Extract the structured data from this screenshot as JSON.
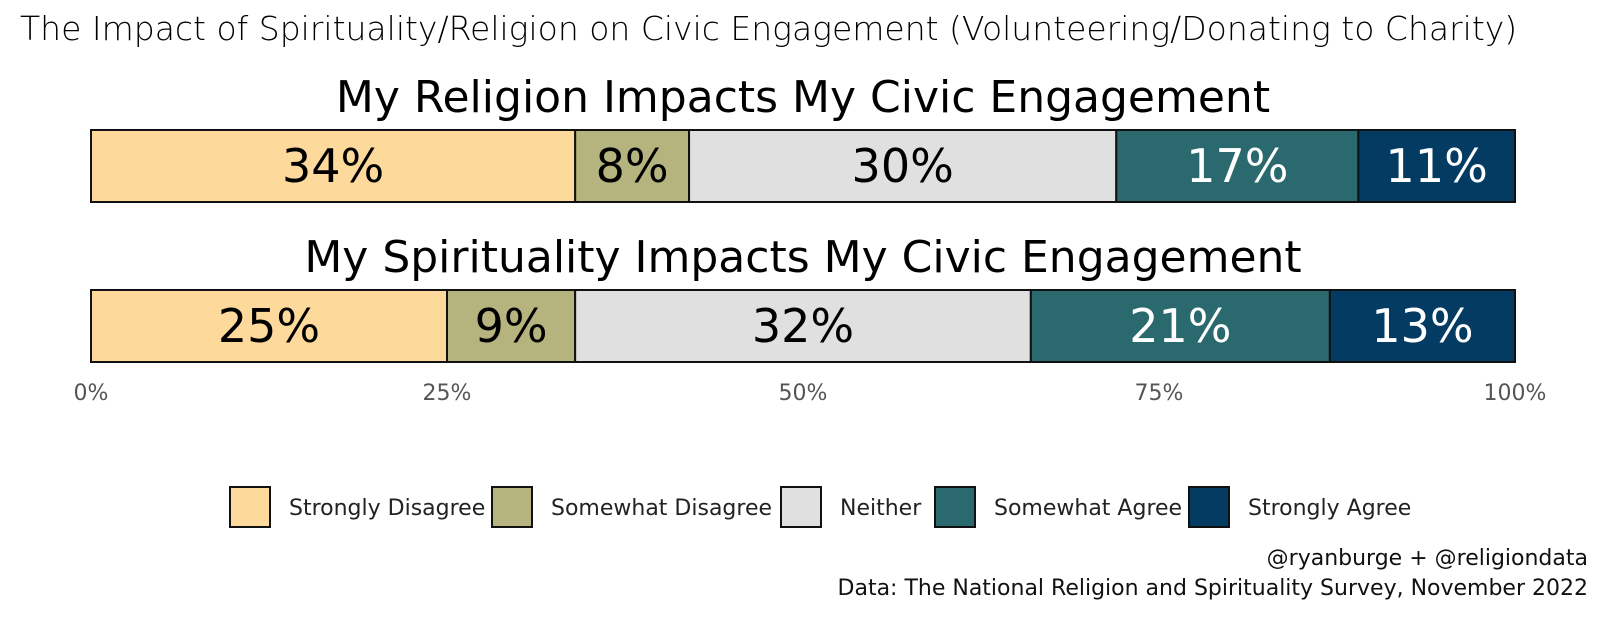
{
  "title": "The Impact of Spirituality/Religion on Civic Engagement (Volunteering/Donating to Charity)",
  "caption": {
    "line1": "@ryanburge + @religiondata",
    "line2": "Data: The National Religion and Spirituality Survey, November 2022"
  },
  "colors": {
    "Strongly Disagree": "#FDD99B",
    "Somewhat Disagree": "#B5B37E",
    "Neither": "#E0E0E0",
    "Somewhat Agree": "#2A6A6E",
    "Strongly Agree": "#043B62"
  },
  "label_colors": {
    "Strongly Disagree": "#000000",
    "Somewhat Disagree": "#000000",
    "Neither": "#000000",
    "Somewhat Agree": "#ffffff",
    "Strongly Agree": "#ffffff"
  },
  "chart_data": {
    "type": "bar",
    "orientation": "horizontal-stacked-100",
    "title": "The Impact of Spirituality/Religion on Civic Engagement (Volunteering/Donating to Charity)",
    "categories": [
      "Strongly Disagree",
      "Somewhat Disagree",
      "Neither",
      "Somewhat Agree",
      "Strongly Agree"
    ],
    "panels": [
      {
        "name": "My Religion Impacts My Civic Engagement",
        "values": [
          34,
          8,
          30,
          17,
          11
        ],
        "labels": [
          "34%",
          "8%",
          "30%",
          "17%",
          "11%"
        ]
      },
      {
        "name": "My Spirituality Impacts My Civic Engagement",
        "values": [
          25,
          9,
          32,
          21,
          13
        ],
        "labels": [
          "25%",
          "9%",
          "32%",
          "21%",
          "13%"
        ]
      }
    ],
    "xlim": [
      0,
      100
    ],
    "xticks": [
      0,
      25,
      50,
      75,
      100
    ],
    "xtick_labels": [
      "0%",
      "25%",
      "50%",
      "75%",
      "100%"
    ],
    "grid": false,
    "legend_position": "bottom"
  }
}
